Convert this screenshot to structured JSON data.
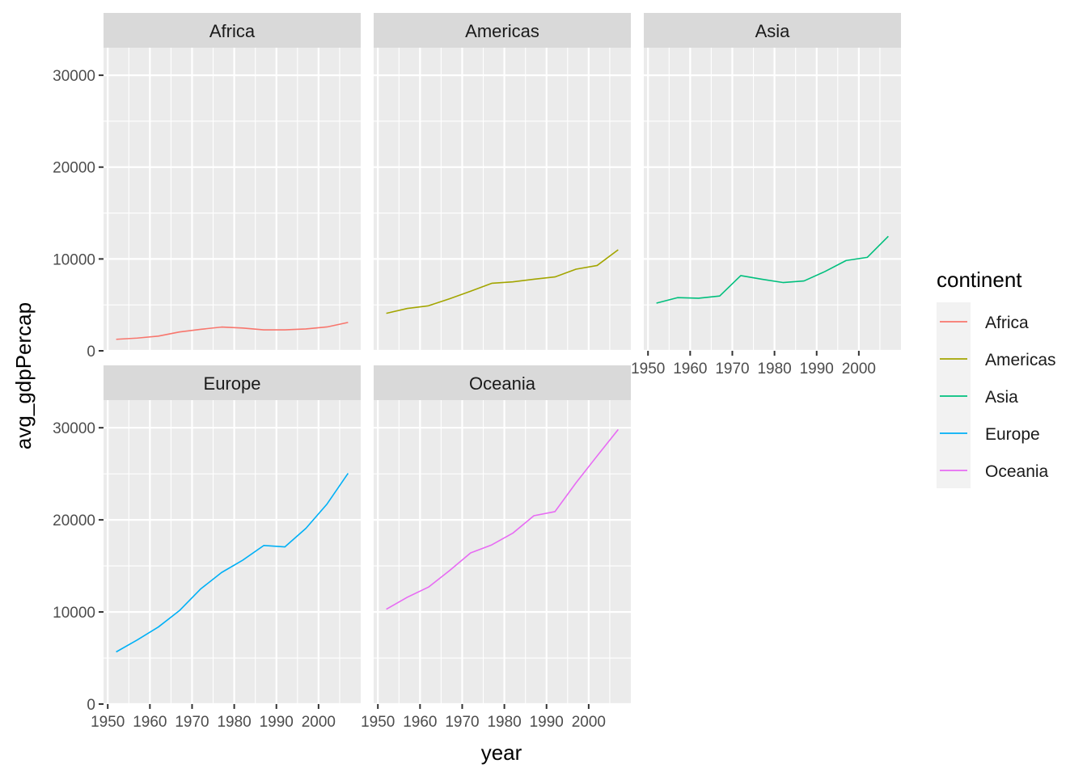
{
  "chart_data": {
    "type": "line",
    "title": "",
    "xlabel": "year",
    "ylabel": "avg_gdpPercap",
    "xlim": [
      1949,
      2010
    ],
    "ylim": [
      0,
      30000
    ],
    "x_ticks": [
      1950,
      1960,
      1970,
      1980,
      1990,
      2000
    ],
    "y_ticks": [
      0,
      10000,
      20000,
      30000
    ],
    "grid": true,
    "facet_by": "continent",
    "legend": {
      "title": "continent",
      "position": "right"
    },
    "x": [
      1952,
      1957,
      1962,
      1967,
      1972,
      1977,
      1982,
      1987,
      1992,
      1997,
      2002,
      2007
    ],
    "series": [
      {
        "name": "Africa",
        "color": "#F8766D",
        "values": [
          1253,
          1385,
          1598,
          2050,
          2340,
          2586,
          2482,
          2283,
          2282,
          2379,
          2599,
          3089
        ]
      },
      {
        "name": "Americas",
        "color": "#A3A500",
        "values": [
          4079,
          4616,
          4902,
          5668,
          6491,
          7352,
          7507,
          7793,
          8045,
          8889,
          9288,
          11003
        ]
      },
      {
        "name": "Asia",
        "color": "#00BF7D",
        "values": [
          5195,
          5788,
          5729,
          5971,
          8187,
          7792,
          7434,
          7608,
          8640,
          9834,
          10174,
          12473
        ]
      },
      {
        "name": "Europe",
        "color": "#00B0F6",
        "values": [
          5661,
          6963,
          8365,
          10144,
          12480,
          14284,
          15618,
          17214,
          17062,
          19077,
          21712,
          25054
        ]
      },
      {
        "name": "Oceania",
        "color": "#E76BF3",
        "values": [
          10298,
          11599,
          12696,
          14495,
          16417,
          17284,
          18555,
          20448,
          20895,
          24024,
          26939,
          29810
        ]
      }
    ]
  }
}
